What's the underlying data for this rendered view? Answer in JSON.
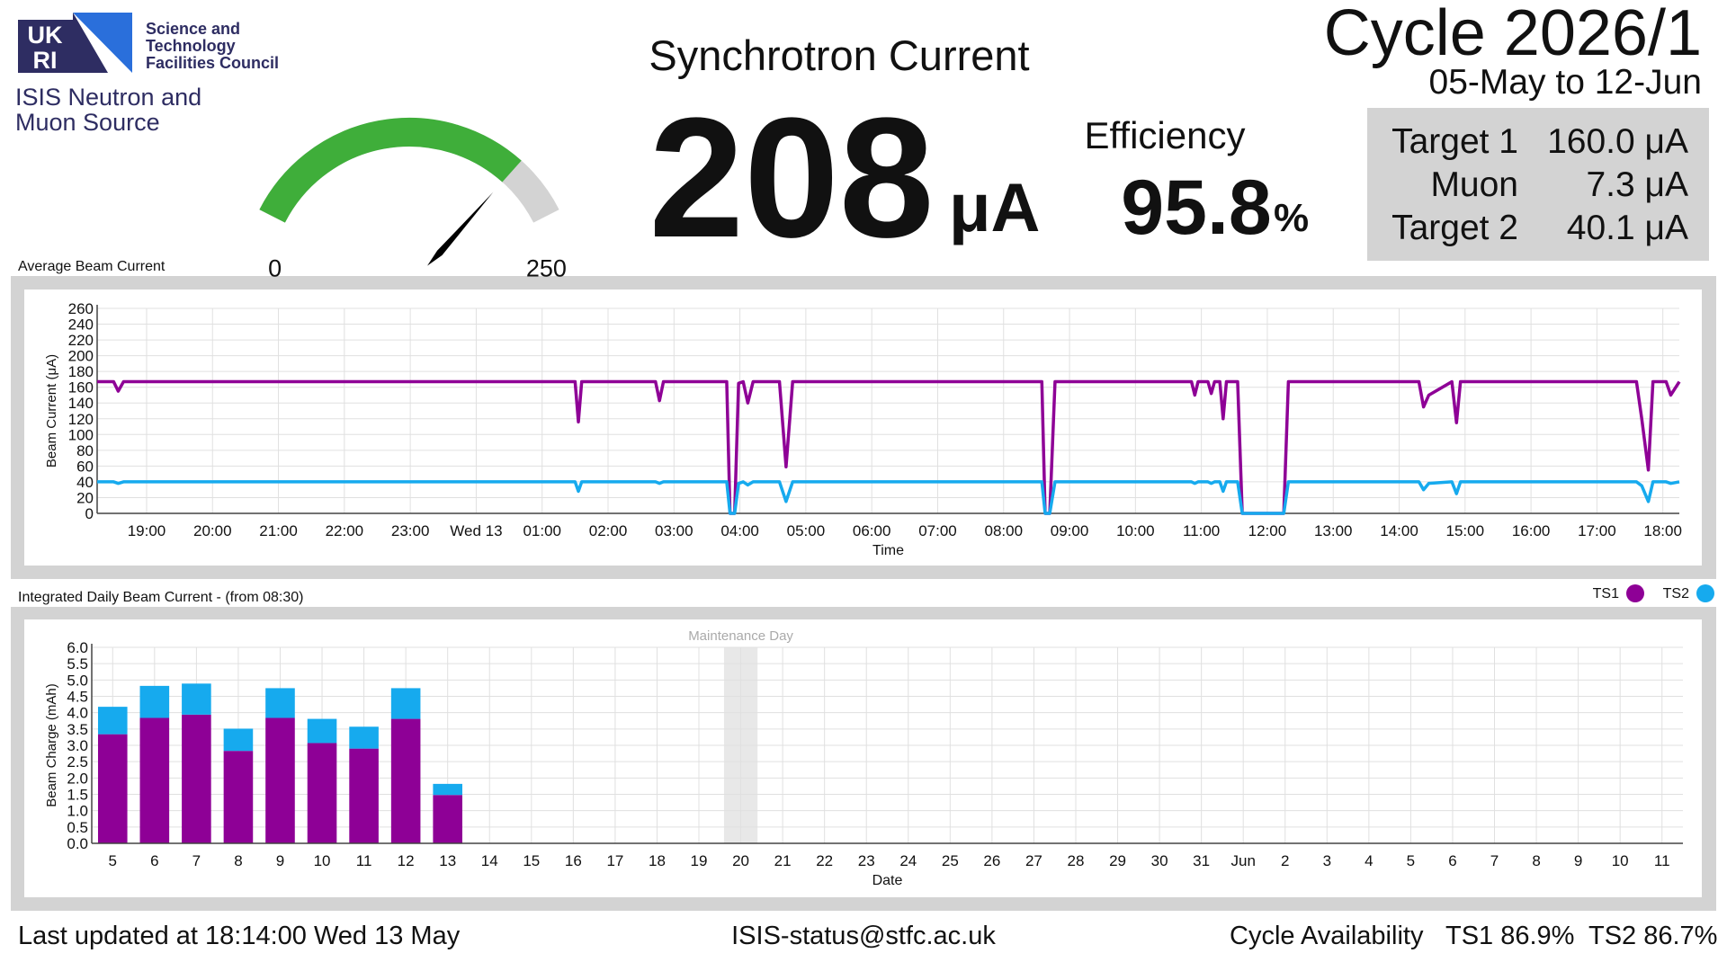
{
  "header": {
    "logo": {
      "mark_top": "UK",
      "mark_bottom": "RI",
      "council": [
        "Science and",
        "Technology",
        "Facilities Council"
      ]
    },
    "facility": [
      "ISIS Neutron and",
      "Muon Source"
    ]
  },
  "gauge": {
    "value": 208,
    "min": 0,
    "max": 250,
    "color": "#3fae3a",
    "track_color": "#d3d3d3"
  },
  "current": {
    "title": "Synchrotron Current",
    "value": 208,
    "unit": "μA"
  },
  "efficiency": {
    "title": "Efficiency",
    "value": 95.8,
    "unit": "%"
  },
  "cycle": {
    "title": "Cycle 2026/1",
    "dates": "05-May to 12-Jun"
  },
  "targets": [
    {
      "name": "Target 1",
      "value": "160.0 μA"
    },
    {
      "name": "Muon",
      "value": "7.3 μA"
    },
    {
      "name": "Target 2",
      "value": "40.1 μA"
    }
  ],
  "chart_data": [
    {
      "type": "line",
      "title": "Average Beam Current",
      "x_label": "Time",
      "y_label": "Beam Current (μA)",
      "x": [
        18.25,
        18.5,
        18.57,
        18.65,
        25.5,
        25.55,
        25.6,
        26.72,
        26.78,
        26.84,
        27.8,
        27.85,
        27.92,
        27.98,
        28.05,
        28.12,
        28.2,
        28.6,
        28.7,
        28.8,
        32.58,
        32.63,
        32.7,
        32.78,
        34.85,
        34.9,
        34.95,
        35.1,
        35.15,
        35.2,
        35.28,
        35.33,
        35.38,
        35.55,
        35.62,
        36.25,
        36.32,
        38.3,
        38.37,
        38.45,
        38.8,
        38.87,
        38.93,
        41.6,
        41.68,
        41.78,
        41.85,
        42.05,
        42.12,
        42.25
      ],
      "xlim": [
        18.25,
        42.25
      ],
      "xticks": [
        {
          "value": 19,
          "label": "19:00"
        },
        {
          "value": 20,
          "label": "20:00"
        },
        {
          "value": 21,
          "label": "21:00"
        },
        {
          "value": 22,
          "label": "22:00"
        },
        {
          "value": 23,
          "label": "23:00"
        },
        {
          "value": 24,
          "label": "Wed 13"
        },
        {
          "value": 25,
          "label": "01:00"
        },
        {
          "value": 26,
          "label": "02:00"
        },
        {
          "value": 27,
          "label": "03:00"
        },
        {
          "value": 28,
          "label": "04:00"
        },
        {
          "value": 29,
          "label": "05:00"
        },
        {
          "value": 30,
          "label": "06:00"
        },
        {
          "value": 31,
          "label": "07:00"
        },
        {
          "value": 32,
          "label": "08:00"
        },
        {
          "value": 33,
          "label": "09:00"
        },
        {
          "value": 34,
          "label": "10:00"
        },
        {
          "value": 35,
          "label": "11:00"
        },
        {
          "value": 36,
          "label": "12:00"
        },
        {
          "value": 37,
          "label": "13:00"
        },
        {
          "value": 38,
          "label": "14:00"
        },
        {
          "value": 39,
          "label": "15:00"
        },
        {
          "value": 40,
          "label": "16:00"
        },
        {
          "value": 41,
          "label": "17:00"
        },
        {
          "value": 42,
          "label": "18:00"
        }
      ],
      "ylim": [
        0,
        260
      ],
      "yticks": [
        0,
        20,
        40,
        60,
        80,
        100,
        120,
        140,
        160,
        180,
        200,
        220,
        240,
        260
      ],
      "grid": true,
      "series": [
        {
          "name": "TS1",
          "color": "#8e0096",
          "values": [
            167,
            167,
            155,
            167,
            167,
            116,
            167,
            167,
            143,
            167,
            167,
            0,
            0,
            165,
            167,
            140,
            167,
            167,
            59,
            167,
            167,
            0,
            0,
            167,
            167,
            150,
            167,
            167,
            152,
            167,
            167,
            120,
            167,
            167,
            0,
            0,
            167,
            167,
            135,
            150,
            167,
            115,
            167,
            167,
            120,
            55,
            167,
            167,
            150,
            167
          ]
        },
        {
          "name": "TS2",
          "color": "#16aaee",
          "values": [
            40,
            40,
            38,
            40,
            40,
            28,
            40,
            40,
            38,
            40,
            40,
            0,
            0,
            38,
            40,
            36,
            40,
            40,
            15,
            40,
            40,
            0,
            0,
            40,
            40,
            38,
            40,
            40,
            38,
            40,
            40,
            28,
            40,
            40,
            0,
            0,
            40,
            40,
            30,
            38,
            40,
            25,
            40,
            40,
            35,
            15,
            40,
            40,
            38,
            40
          ]
        }
      ]
    },
    {
      "type": "bar",
      "stacked": true,
      "title": "Integrated Daily Beam Current - (from 08:30)",
      "x_label": "Date",
      "y_label": "Beam Charge (mAh)",
      "categories": [
        "5",
        "6",
        "7",
        "8",
        "9",
        "10",
        "11",
        "12",
        "13",
        "14",
        "15",
        "16",
        "17",
        "18",
        "19",
        "20",
        "21",
        "22",
        "23",
        "24",
        "25",
        "26",
        "27",
        "28",
        "29",
        "30",
        "31",
        "Jun",
        "2",
        "3",
        "4",
        "5",
        "6",
        "7",
        "8",
        "9",
        "10",
        "11"
      ],
      "ylim": [
        0,
        6
      ],
      "yticks": [
        {
          "value": 0,
          "label": "0.0"
        },
        0.5,
        {
          "value": 1,
          "label": "1.0"
        },
        1.5,
        {
          "value": 2,
          "label": "2.0"
        },
        2.5,
        {
          "value": 3,
          "label": "3.0"
        },
        3.5,
        {
          "value": 4,
          "label": "4.0"
        },
        4.5,
        {
          "value": 5,
          "label": "5.0"
        },
        5.5,
        {
          "value": 6,
          "label": "6.0"
        }
      ],
      "grid": true,
      "legend": "top-right",
      "series": [
        {
          "name": "TS1",
          "color": "#8e0096",
          "values": [
            3.34,
            3.84,
            3.94,
            2.83,
            3.84,
            3.07,
            2.9,
            3.81,
            1.48,
            null,
            null,
            null,
            null,
            null,
            null,
            null,
            null,
            null,
            null,
            null,
            null,
            null,
            null,
            null,
            null,
            null,
            null,
            null,
            null,
            null,
            null,
            null,
            null,
            null,
            null,
            null,
            null,
            null
          ]
        },
        {
          "name": "TS2",
          "color": "#16aaee",
          "values": [
            0.84,
            0.98,
            0.95,
            0.68,
            0.91,
            0.74,
            0.67,
            0.94,
            0.34,
            null,
            null,
            null,
            null,
            null,
            null,
            null,
            null,
            null,
            null,
            null,
            null,
            null,
            null,
            null,
            null,
            null,
            null,
            null,
            null,
            null,
            null,
            null,
            null,
            null,
            null,
            null,
            null,
            null
          ]
        }
      ],
      "annotations": [
        {
          "text": "Maintenance Day",
          "category": "20"
        }
      ]
    }
  ],
  "footer": {
    "updated": "Last updated at 18:14:00 Wed 13 May",
    "email": "ISIS-status@stfc.ac.uk",
    "availability_label": "Cycle Availability",
    "availability": [
      "TS1 86.9%",
      "TS2 86.7%"
    ]
  }
}
